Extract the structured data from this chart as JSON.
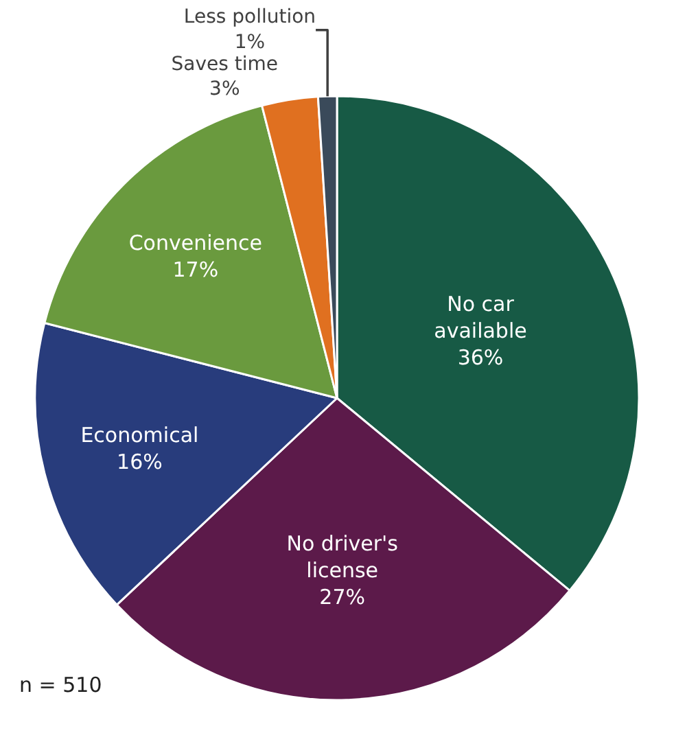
{
  "chart_data": {
    "type": "pie",
    "categories": [
      "No car available",
      "No driver's license",
      "Economical",
      "Convenience",
      "Saves time",
      "Less pollution"
    ],
    "values": [
      36,
      27,
      16,
      17,
      3,
      1
    ],
    "value_labels": [
      "36%",
      "27%",
      "16%",
      "17%",
      "3%",
      "1%"
    ],
    "colors": [
      "#175a45",
      "#5c1a4a",
      "#283c7c",
      "#6a9a3e",
      "#e07020",
      "#3a4a5a"
    ],
    "legend": false,
    "annotations": [
      "n = 510"
    ]
  }
}
